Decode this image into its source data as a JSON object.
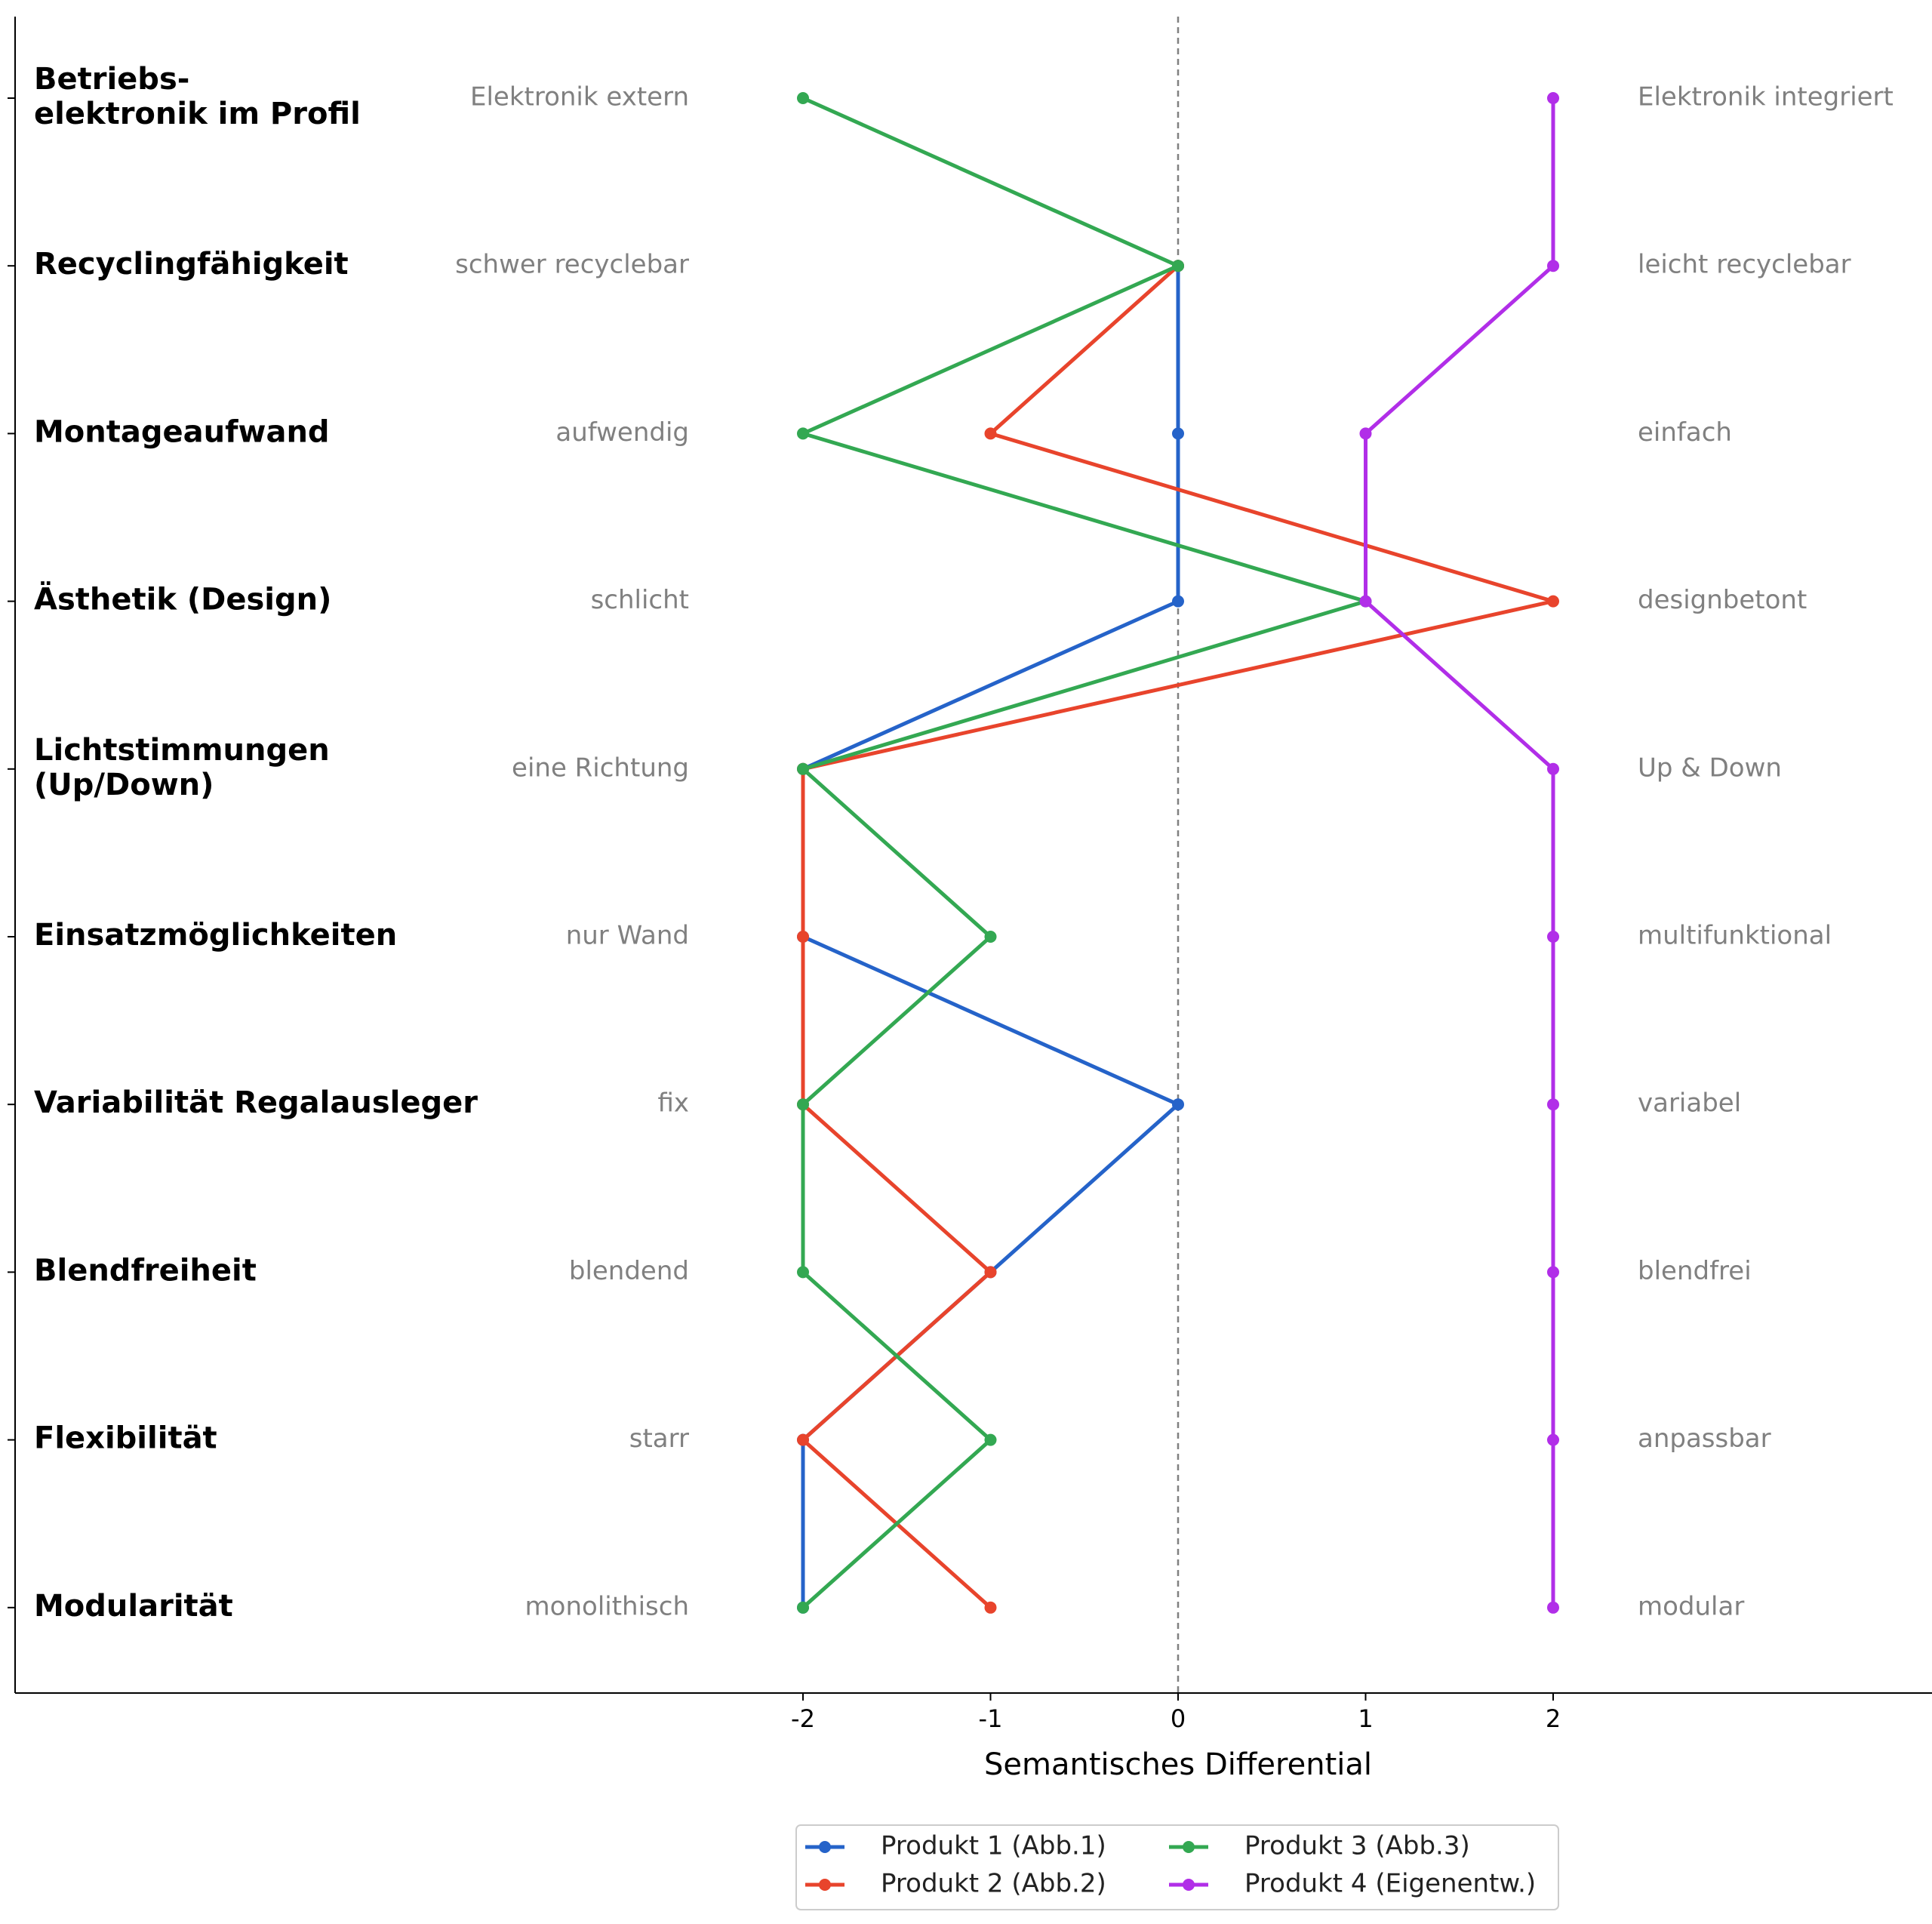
{
  "chart_data": {
    "type": "line",
    "xlabel": "Semantisches Differential",
    "xlim": [
      -2,
      2
    ],
    "xticks": [
      "-2",
      "-1",
      "0",
      "1",
      "2"
    ],
    "reference_line": 0,
    "legend_placement": "bottom-center",
    "criteria": [
      {
        "label": [
          "Betriebs-",
          "elektronik im Profil"
        ],
        "left": "Elektronik extern",
        "right": "Elektronik integriert"
      },
      {
        "label": [
          "Recyclingfähigkeit"
        ],
        "left": "schwer recyclebar",
        "right": "leicht recyclebar"
      },
      {
        "label": [
          "Montageaufwand"
        ],
        "left": "aufwendig",
        "right": "einfach"
      },
      {
        "label": [
          "Ästhetik (Design)"
        ],
        "left": "schlicht",
        "right": "designbetont"
      },
      {
        "label": [
          "Lichtstimmungen",
          "(Up/Down)"
        ],
        "left": "eine Richtung",
        "right": "Up & Down"
      },
      {
        "label": [
          "Einsatzmöglichkeiten"
        ],
        "left": "nur Wand",
        "right": "multifunktional"
      },
      {
        "label": [
          "Variabilität Regalausleger"
        ],
        "left": "fix",
        "right": "variabel"
      },
      {
        "label": [
          "Blendfreiheit"
        ],
        "left": "blendend",
        "right": "blendfrei"
      },
      {
        "label": [
          "Flexibilität"
        ],
        "left": "starr",
        "right": "anpassbar"
      },
      {
        "label": [
          "Modularität"
        ],
        "left": "monolithisch",
        "right": "modular"
      }
    ],
    "series": [
      {
        "name": "Produkt 1 (Abb.1)",
        "color": "#2563c9",
        "values": [
          null,
          0,
          0,
          0,
          -2,
          -2,
          0,
          -1,
          -2,
          -2
        ]
      },
      {
        "name": "Produkt 2 (Abb.2)",
        "color": "#e8442c",
        "values": [
          null,
          0,
          -1,
          2,
          -2,
          -2,
          -2,
          -1,
          -2,
          -1
        ]
      },
      {
        "name": "Produkt 3 (Abb.3)",
        "color": "#33a852",
        "values": [
          -2,
          0,
          -2,
          1,
          -2,
          -1,
          -2,
          -2,
          -1,
          -2
        ]
      },
      {
        "name": "Produkt 4 (Eigenentw.)",
        "color": "#b12ee8",
        "values": [
          2,
          2,
          1,
          1,
          2,
          2,
          2,
          2,
          2,
          2
        ]
      }
    ]
  }
}
